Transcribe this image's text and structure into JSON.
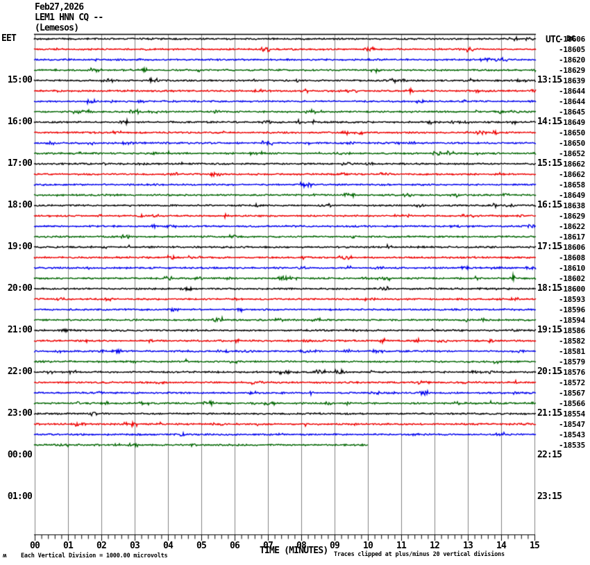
{
  "header": {
    "date_line": "Feb27,2026",
    "station_line": "LEM1 HNN CQ --",
    "location_line": "(Lemesos)",
    "left_axis_label": "EET",
    "right_axis_label": "UTC",
    "dc_column_label": "DC"
  },
  "x_axis": {
    "title": "TIME (MINUTES)",
    "tick_labels": [
      "00",
      "01",
      "02",
      "03",
      "04",
      "05",
      "06",
      "07",
      "08",
      "09",
      "10",
      "11",
      "12",
      "13",
      "14",
      "15"
    ]
  },
  "left_axis": {
    "tick_labels": [
      "15:00",
      "16:00",
      "17:00",
      "18:00",
      "19:00",
      "20:00",
      "21:00",
      "22:00",
      "23:00",
      "00:00",
      "01:00"
    ]
  },
  "right_axis": {
    "tick_labels": [
      "13:15",
      "14:15",
      "15:15",
      "16:15",
      "17:15",
      "18:15",
      "19:15",
      "20:15",
      "21:15",
      "22:15",
      "23:15"
    ]
  },
  "footer": {
    "scale_note": "Each Vertical Division = 1000.00 microvolts",
    "clip_note": "Traces clipped at plus/minus 20 vertical divisions",
    "corner_glyph": "ʍ"
  },
  "chart_data": {
    "type": "line",
    "subtype": "helicorder",
    "title": "LEM1 HNN CQ -- (Lemesos) Feb27,2026",
    "xlabel": "TIME (MINUTES)",
    "x_range_minutes": [
      0,
      15
    ],
    "minutes_per_line": 15,
    "lines": 40,
    "first_line_start_eet": "14:00",
    "last_line_end_minute": 10,
    "left_hour_labels_eet": [
      "15:00",
      "16:00",
      "17:00",
      "18:00",
      "19:00",
      "20:00",
      "21:00",
      "22:00",
      "23:00",
      "00:00",
      "01:00"
    ],
    "right_hour_labels_utc": [
      "13:15",
      "14:15",
      "15:15",
      "16:15",
      "17:15",
      "18:15",
      "19:15",
      "20:15",
      "21:15",
      "22:15",
      "23:15"
    ],
    "trace_color_cycle": [
      "#000000",
      "#ee0000",
      "#0000ee",
      "#006600"
    ],
    "grid_color": "#808080",
    "frame_color": "#000000",
    "dc_offsets_microvolts": [
      -18606,
      -18605,
      -18620,
      -18629,
      -18639,
      -18644,
      -18644,
      -18645,
      -18649,
      -18650,
      -18650,
      -18652,
      -18662,
      -18662,
      -18658,
      -18649,
      -18638,
      -18629,
      -18622,
      -18617,
      -18606,
      -18608,
      -18610,
      -18602,
      -18600,
      -18593,
      -18596,
      -18594,
      -18586,
      -18582,
      -18581,
      -18579,
      -18576,
      -18572,
      -18567,
      -18566,
      -18554,
      -18547,
      -18543,
      -18535
    ],
    "amplitude_note": "all traces flat background noise of roughly +/-1 vertical pixel with occasional small bursts",
    "scale": "Each Vertical Division = 1000.00 microvolts",
    "clipping": "Traces clipped at plus/minus 20 vertical divisions"
  }
}
